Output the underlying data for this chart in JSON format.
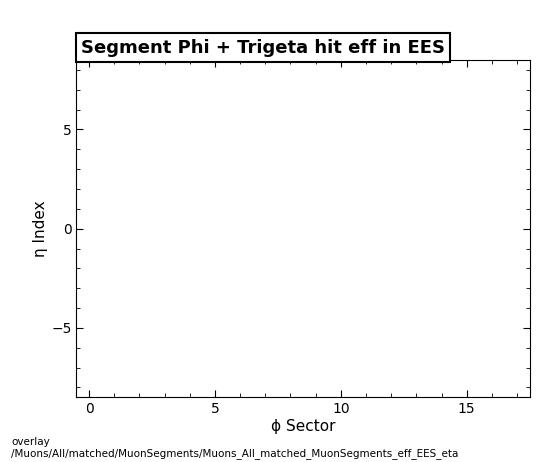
{
  "title": "Segment Phi + Trigeta hit eff in EES",
  "xlabel": "ϕ Sector",
  "ylabel": "η Index",
  "xlim": [
    -0.5,
    17.5
  ],
  "ylim": [
    -8.5,
    8.5
  ],
  "xticks": [
    0,
    5,
    10,
    15
  ],
  "yticks": [
    -5,
    0,
    5
  ],
  "background_color": "#ffffff",
  "plot_bg_color": "#ffffff",
  "footer_line1": "overlay",
  "footer_line2": "/Muons/All/matched/MuonSegments/Muons_All_matched_MuonSegments_eff_EES_eta",
  "title_fontsize": 13,
  "axis_label_fontsize": 11,
  "tick_fontsize": 10,
  "footer_fontsize": 7.5
}
